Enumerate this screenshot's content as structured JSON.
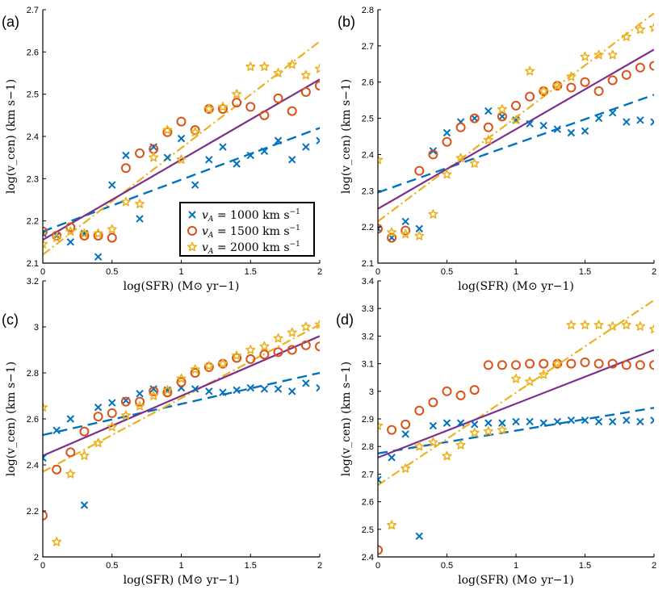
{
  "colors": {
    "va1000": "#0072BD",
    "va1500": "#D95319",
    "va2000": "#EDB120",
    "fit": "#7E2F8E"
  },
  "legend": {
    "entries": [
      {
        "series": "va1000",
        "label": "v_A = 1000 km s^-1",
        "pre": "v",
        "sub": "A",
        "mid": " = 1000 km s",
        "sup": "−1"
      },
      {
        "series": "va1500",
        "label": "v_A = 1500 km s^-1",
        "pre": "v",
        "sub": "A",
        "mid": " = 1500 km s",
        "sup": "−1"
      },
      {
        "series": "va2000",
        "label": "v_A = 2000 km s^-1",
        "pre": "v",
        "sub": "A",
        "mid": " = 2000 km s",
        "sup": "−1"
      }
    ]
  },
  "chart_data": [
    {
      "type": "scatter",
      "panel": "(a)",
      "xlabel": "log(SFR) (M⊙ yr−1)",
      "ylabel": "log(v_cen) (km s−1)",
      "xlim": [
        0,
        2
      ],
      "ylim": [
        2.1,
        2.7
      ],
      "xticks": [
        "0",
        "0.5",
        "1",
        "1.5",
        "2"
      ],
      "xtick_values": [
        0,
        0.5,
        1,
        1.5,
        2
      ],
      "yticks": [
        "2.1",
        "2.2",
        "2.3",
        "2.4",
        "2.5",
        "2.6",
        "2.7"
      ],
      "ytick_values": [
        2.1,
        2.2,
        2.3,
        2.4,
        2.5,
        2.6,
        2.7
      ],
      "x": [
        0,
        0.1,
        0.2,
        0.3,
        0.4,
        0.5,
        0.6,
        0.7,
        0.8,
        0.9,
        1.0,
        1.1,
        1.2,
        1.3,
        1.4,
        1.5,
        1.6,
        1.7,
        1.8,
        1.9,
        2.0
      ],
      "series": [
        {
          "name": "v_A = 1000 km s^-1",
          "key": "va1000",
          "marker": "x",
          "values": [
            2.17,
            2.165,
            2.15,
            2.17,
            2.115,
            2.285,
            2.355,
            2.205,
            2.375,
            2.35,
            2.395,
            2.285,
            2.345,
            2.375,
            2.335,
            2.355,
            2.365,
            2.39,
            2.345,
            2.375,
            2.39
          ],
          "fit": [
            2.175,
            2.42
          ]
        },
        {
          "name": "v_A = 1500 km s^-1",
          "key": "va1500",
          "marker": "o",
          "values": [
            2.175,
            2.165,
            2.185,
            2.165,
            2.165,
            2.16,
            2.325,
            2.36,
            2.37,
            2.41,
            2.435,
            2.415,
            2.465,
            2.465,
            2.48,
            2.47,
            2.45,
            2.49,
            2.46,
            2.505,
            2.52
          ],
          "fit": [
            2.12,
            2.625
          ]
        },
        {
          "name": "v_A = 2000 km s^-1",
          "key": "va2000",
          "marker": "star",
          "values": [
            2.145,
            2.16,
            2.175,
            2.17,
            2.17,
            2.18,
            2.245,
            2.24,
            2.35,
            2.415,
            2.345,
            2.41,
            2.465,
            2.47,
            2.5,
            2.565,
            2.565,
            2.55,
            2.57,
            2.545,
            2.56
          ],
          "fit": [
            2.12,
            2.625
          ]
        }
      ],
      "combined_fit": [
        2.155,
        2.535
      ]
    },
    {
      "type": "scatter",
      "panel": "(b)",
      "xlabel": "log(SFR) (M⊙ yr−1)",
      "ylabel": "log(v_cen) (km s−1)",
      "xlim": [
        0,
        2
      ],
      "ylim": [
        2.1,
        2.8
      ],
      "xticks": [
        "0",
        "0.5",
        "1",
        "1.5",
        "2"
      ],
      "xtick_values": [
        0,
        0.5,
        1,
        1.5,
        2
      ],
      "yticks": [
        "2.1",
        "2.2",
        "2.3",
        "2.4",
        "2.5",
        "2.6",
        "2.7",
        "2.8"
      ],
      "ytick_values": [
        2.1,
        2.2,
        2.3,
        2.4,
        2.5,
        2.6,
        2.7,
        2.8
      ],
      "x": [
        0,
        0.1,
        0.2,
        0.3,
        0.4,
        0.5,
        0.6,
        0.7,
        0.8,
        0.9,
        1.0,
        1.1,
        1.2,
        1.3,
        1.4,
        1.5,
        1.6,
        1.7,
        1.8,
        1.9,
        2.0
      ],
      "series": [
        {
          "name": "v_A = 1000 km s^-1",
          "key": "va1000",
          "marker": "x",
          "values": [
            2.195,
            2.17,
            2.215,
            2.195,
            2.41,
            2.46,
            2.49,
            2.5,
            2.52,
            2.505,
            2.495,
            2.485,
            2.48,
            2.47,
            2.46,
            2.465,
            2.5,
            2.515,
            2.49,
            2.495,
            2.49
          ],
          "fit": [
            2.295,
            2.565
          ]
        },
        {
          "name": "v_A = 1500 km s^-1",
          "key": "va1500",
          "marker": "o",
          "values": [
            2.195,
            2.17,
            2.19,
            2.355,
            2.4,
            2.435,
            2.475,
            2.5,
            2.475,
            2.505,
            2.535,
            2.56,
            2.575,
            2.59,
            2.585,
            2.6,
            2.575,
            2.605,
            2.62,
            2.64,
            2.645
          ],
          "fit": [
            2.215,
            2.79
          ]
        },
        {
          "name": "v_A = 2000 km s^-1",
          "key": "va2000",
          "marker": "star",
          "values": [
            2.385,
            2.185,
            2.18,
            2.175,
            2.235,
            2.345,
            2.39,
            2.375,
            2.44,
            2.525,
            2.495,
            2.63,
            2.575,
            2.59,
            2.615,
            2.67,
            2.675,
            2.675,
            2.725,
            2.745,
            2.75
          ],
          "fit": [
            2.215,
            2.79
          ]
        }
      ],
      "combined_fit": [
        2.25,
        2.69
      ]
    },
    {
      "type": "scatter",
      "panel": "(c)",
      "xlabel": "log(SFR) (M⊙ yr−1)",
      "ylabel": "log(v_cen) (km s−1)",
      "xlim": [
        0,
        2
      ],
      "ylim": [
        2.0,
        3.2
      ],
      "xticks": [
        "0",
        "0.5",
        "1",
        "1.5",
        "2"
      ],
      "xtick_values": [
        0,
        0.5,
        1,
        1.5,
        2
      ],
      "yticks": [
        "2",
        "2.2",
        "2.4",
        "2.6",
        "2.8",
        "3",
        "3.2"
      ],
      "ytick_values": [
        2.0,
        2.2,
        2.4,
        2.6,
        2.8,
        3.0,
        3.2
      ],
      "x": [
        0,
        0.1,
        0.2,
        0.3,
        0.4,
        0.5,
        0.6,
        0.7,
        0.8,
        0.9,
        1.0,
        1.1,
        1.2,
        1.3,
        1.4,
        1.5,
        1.6,
        1.7,
        1.8,
        1.9,
        2.0
      ],
      "series": [
        {
          "name": "v_A = 1000 km s^-1",
          "key": "va1000",
          "marker": "x",
          "values": [
            2.43,
            2.55,
            2.6,
            2.225,
            2.65,
            2.67,
            2.68,
            2.71,
            2.73,
            2.725,
            2.735,
            2.73,
            2.72,
            2.715,
            2.725,
            2.735,
            2.73,
            2.73,
            2.72,
            2.755,
            2.735
          ],
          "fit": [
            2.53,
            2.8
          ]
        },
        {
          "name": "v_A = 1500 km s^-1",
          "key": "va1500",
          "marker": "o",
          "values": [
            2.18,
            2.38,
            2.455,
            2.545,
            2.61,
            2.625,
            2.675,
            2.675,
            2.72,
            2.715,
            2.76,
            2.8,
            2.825,
            2.84,
            2.865,
            2.86,
            2.88,
            2.89,
            2.9,
            2.92,
            2.915
          ],
          "fit": [
            2.37,
            3.01
          ]
        },
        {
          "name": "v_A = 2000 km s^-1",
          "key": "va2000",
          "marker": "star",
          "values": [
            2.65,
            2.065,
            2.36,
            2.44,
            2.495,
            2.565,
            2.615,
            2.655,
            2.7,
            2.725,
            2.775,
            2.815,
            2.83,
            2.84,
            2.875,
            2.9,
            2.915,
            2.95,
            2.975,
            3.0,
            3.01
          ],
          "fit": [
            2.37,
            3.01
          ]
        }
      ],
      "combined_fit": [
        2.44,
        2.96
      ]
    },
    {
      "type": "scatter",
      "panel": "(d)",
      "xlabel": "log(SFR) (M⊙ yr−1)",
      "ylabel": "log(v_cen) (km s−1)",
      "xlim": [
        0,
        2
      ],
      "ylim": [
        2.4,
        3.4
      ],
      "xticks": [
        "0",
        "0.5",
        "1",
        "1.5",
        "2"
      ],
      "xtick_values": [
        0,
        0.5,
        1,
        1.5,
        2
      ],
      "yticks": [
        "2.4",
        "2.5",
        "2.6",
        "2.7",
        "2.8",
        "2.9",
        "3",
        "3.1",
        "3.2",
        "3.3",
        "3.4"
      ],
      "ytick_values": [
        2.4,
        2.5,
        2.6,
        2.7,
        2.8,
        2.9,
        3.0,
        3.1,
        3.2,
        3.3,
        3.4
      ],
      "x": [
        0,
        0.1,
        0.2,
        0.3,
        0.4,
        0.5,
        0.6,
        0.7,
        0.8,
        0.9,
        1.0,
        1.1,
        1.2,
        1.3,
        1.4,
        1.5,
        1.6,
        1.7,
        1.8,
        1.9,
        2.0
      ],
      "series": [
        {
          "name": "v_A = 1000 km s^-1",
          "key": "va1000",
          "marker": "x",
          "values": [
            2.68,
            2.76,
            2.845,
            2.475,
            2.875,
            2.885,
            2.885,
            2.88,
            2.885,
            2.885,
            2.89,
            2.89,
            2.885,
            2.89,
            2.895,
            2.895,
            2.89,
            2.89,
            2.895,
            2.89,
            2.895
          ],
          "fit": [
            2.775,
            2.94
          ]
        },
        {
          "name": "v_A = 1500 km s^-1",
          "key": "va1500",
          "marker": "o",
          "values": [
            2.425,
            2.86,
            2.88,
            2.93,
            2.96,
            3.0,
            2.985,
            3.005,
            3.095,
            3.095,
            3.095,
            3.1,
            3.1,
            3.1,
            3.1,
            3.105,
            3.1,
            3.1,
            3.095,
            3.095,
            3.095
          ],
          "fit": [
            2.66,
            3.33
          ]
        },
        {
          "name": "v_A = 2000 km s^-1",
          "key": "va2000",
          "marker": "star",
          "values": [
            2.875,
            2.515,
            2.72,
            2.8,
            2.815,
            2.765,
            2.805,
            2.85,
            2.855,
            2.86,
            3.045,
            3.035,
            3.06,
            3.1,
            3.24,
            3.24,
            3.24,
            3.235,
            3.24,
            3.235,
            3.225
          ],
          "fit": [
            2.66,
            3.33
          ]
        }
      ],
      "combined_fit": [
        2.76,
        3.15
      ]
    }
  ]
}
